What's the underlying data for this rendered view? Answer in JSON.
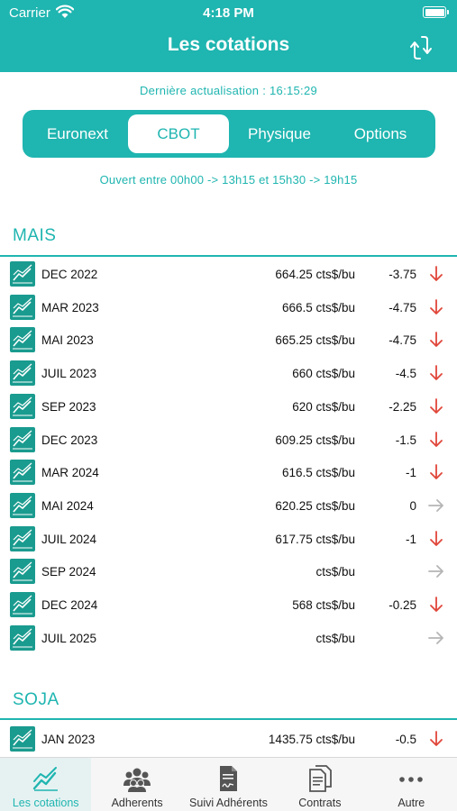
{
  "status_bar": {
    "carrier": "Carrier",
    "time": "4:18 PM"
  },
  "header": {
    "title": "Les cotations"
  },
  "last_update": "Dernière actualisation : 16:15:29",
  "tabs": [
    {
      "label": "Euronext",
      "active": false
    },
    {
      "label": "CBOT",
      "active": true
    },
    {
      "label": "Physique",
      "active": false
    },
    {
      "label": "Options",
      "active": false
    }
  ],
  "hours": "Ouvert entre 00h00 -> 13h15 et 15h30 -> 19h15",
  "sections": [
    {
      "title": "MAIS",
      "rows": [
        {
          "label": "DEC 2022",
          "price": "664.25 cts$/bu",
          "change": "-3.75",
          "trend": "down"
        },
        {
          "label": "MAR 2023",
          "price": "666.5 cts$/bu",
          "change": "-4.75",
          "trend": "down"
        },
        {
          "label": "MAI 2023",
          "price": "665.25 cts$/bu",
          "change": "-4.75",
          "trend": "down"
        },
        {
          "label": "JUIL 2023",
          "price": "660 cts$/bu",
          "change": "-4.5",
          "trend": "down"
        },
        {
          "label": "SEP 2023",
          "price": "620 cts$/bu",
          "change": "-2.25",
          "trend": "down"
        },
        {
          "label": "DEC 2023",
          "price": "609.25 cts$/bu",
          "change": "-1.5",
          "trend": "down"
        },
        {
          "label": "MAR 2024",
          "price": "616.5 cts$/bu",
          "change": "-1",
          "trend": "down"
        },
        {
          "label": "MAI 2024",
          "price": "620.25 cts$/bu",
          "change": "0",
          "trend": "flat"
        },
        {
          "label": "JUIL 2024",
          "price": "617.75 cts$/bu",
          "change": "-1",
          "trend": "down"
        },
        {
          "label": "SEP 2024",
          "price": "cts$/bu",
          "change": "",
          "trend": "flat"
        },
        {
          "label": "DEC 2024",
          "price": "568 cts$/bu",
          "change": "-0.25",
          "trend": "down"
        },
        {
          "label": "JUIL 2025",
          "price": "cts$/bu",
          "change": "",
          "trend": "flat"
        }
      ]
    },
    {
      "title": "SOJA",
      "rows": [
        {
          "label": "JAN 2023",
          "price": "1435.75 cts$/bu",
          "change": "-0.5",
          "trend": "down"
        }
      ]
    }
  ],
  "tabbar": [
    {
      "label": "Les cotations",
      "icon": "chart-line-icon",
      "active": true
    },
    {
      "label": "Adherents",
      "icon": "users-icon",
      "active": false
    },
    {
      "label": "Suivi Adhérents",
      "icon": "document-signature-icon",
      "active": false
    },
    {
      "label": "Contrats",
      "icon": "documents-icon",
      "active": false
    },
    {
      "label": "Autre",
      "icon": "more-dots-icon",
      "active": false
    }
  ],
  "colors": {
    "accent": "#1fb5b0",
    "icon_bg": "#1a9b8f",
    "down": "#e0463a",
    "flat": "#b5b5b5"
  }
}
